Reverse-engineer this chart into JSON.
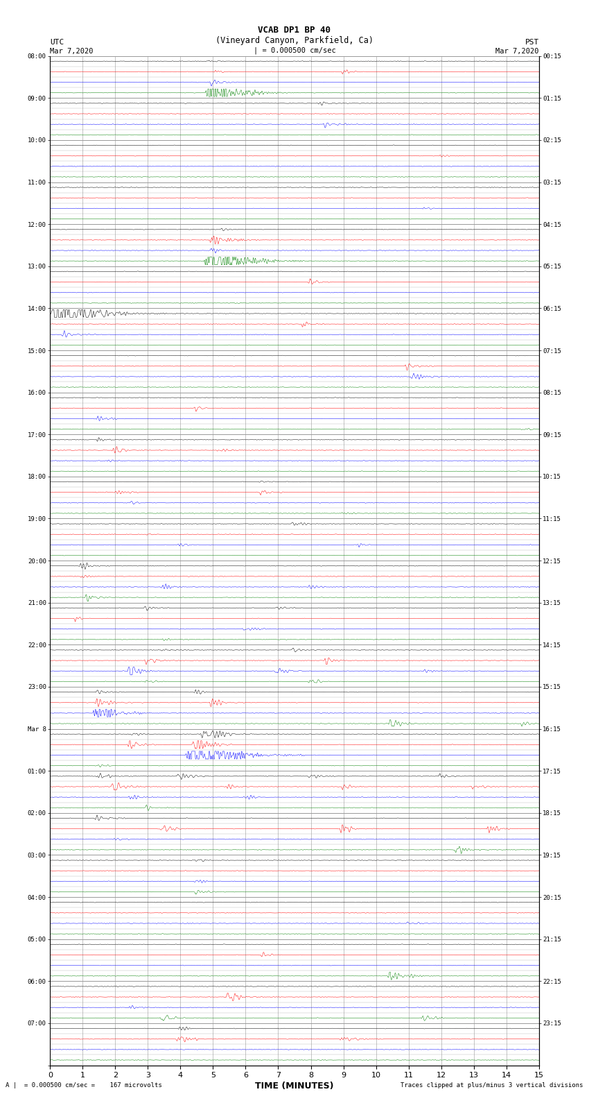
{
  "title_line1": "VCAB DP1 BP 40",
  "title_line2": "(Vineyard Canyon, Parkfield, Ca)",
  "scale_label": "| = 0.000500 cm/sec",
  "left_label": "UTC",
  "left_date": "Mar 7,2020",
  "right_label": "PST",
  "right_date": "Mar 7,2020",
  "xlabel": "TIME (MINUTES)",
  "bottom_left": "A |  = 0.000500 cm/sec =    167 microvolts",
  "bottom_right": "Traces clipped at plus/minus 3 vertical divisions",
  "utc_hour_labels": [
    "08:00",
    "09:00",
    "10:00",
    "11:00",
    "12:00",
    "13:00",
    "14:00",
    "15:00",
    "16:00",
    "17:00",
    "18:00",
    "19:00",
    "20:00",
    "21:00",
    "22:00",
    "23:00",
    "Mar 8",
    "01:00",
    "02:00",
    "03:00",
    "04:00",
    "05:00",
    "06:00",
    "07:00"
  ],
  "pst_hour_labels": [
    "00:15",
    "01:15",
    "02:15",
    "03:15",
    "04:15",
    "05:15",
    "06:15",
    "07:15",
    "08:15",
    "09:15",
    "10:15",
    "11:15",
    "12:15",
    "13:15",
    "14:15",
    "15:15",
    "16:15",
    "17:15",
    "18:15",
    "19:15",
    "20:15",
    "21:15",
    "22:15",
    "23:15"
  ],
  "num_hours": 24,
  "traces_per_hour": 4,
  "colors": [
    "black",
    "red",
    "blue",
    "green"
  ],
  "bg_color": "white",
  "grid_color": "#888888",
  "amplitude_scale": 0.35
}
